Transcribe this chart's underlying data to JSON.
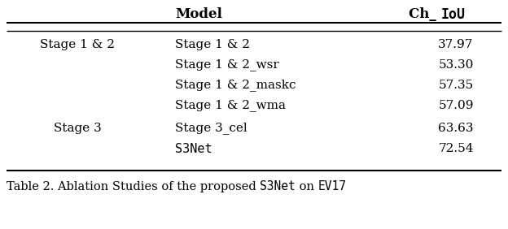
{
  "col_headers": [
    "",
    "Model",
    "Ch_ IoU"
  ],
  "rows": [
    [
      "Stage 1 & 2",
      "Stage 1 & 2",
      "37.97"
    ],
    [
      "",
      "Stage 1 & 2_wsr",
      "53.30"
    ],
    [
      "",
      "Stage 1 & 2_maskc",
      "57.35"
    ],
    [
      "",
      "Stage 1 & 2_wma",
      "57.09"
    ],
    [
      "Stage 3",
      "Stage 3_cel",
      "63.63"
    ],
    [
      "",
      "S3Net",
      "72.54"
    ]
  ],
  "monospace_models": [
    "S3Net"
  ],
  "caption_parts": [
    [
      "Table 2. Ablation Studies of the proposed ",
      false
    ],
    [
      "S3Net",
      true
    ],
    [
      " on ",
      false
    ],
    [
      "EV17",
      true
    ]
  ],
  "figure_bg": "#ffffff",
  "text_color": "#000000",
  "fontsize_header": 12,
  "fontsize_body": 11,
  "fontsize_caption": 10.5
}
